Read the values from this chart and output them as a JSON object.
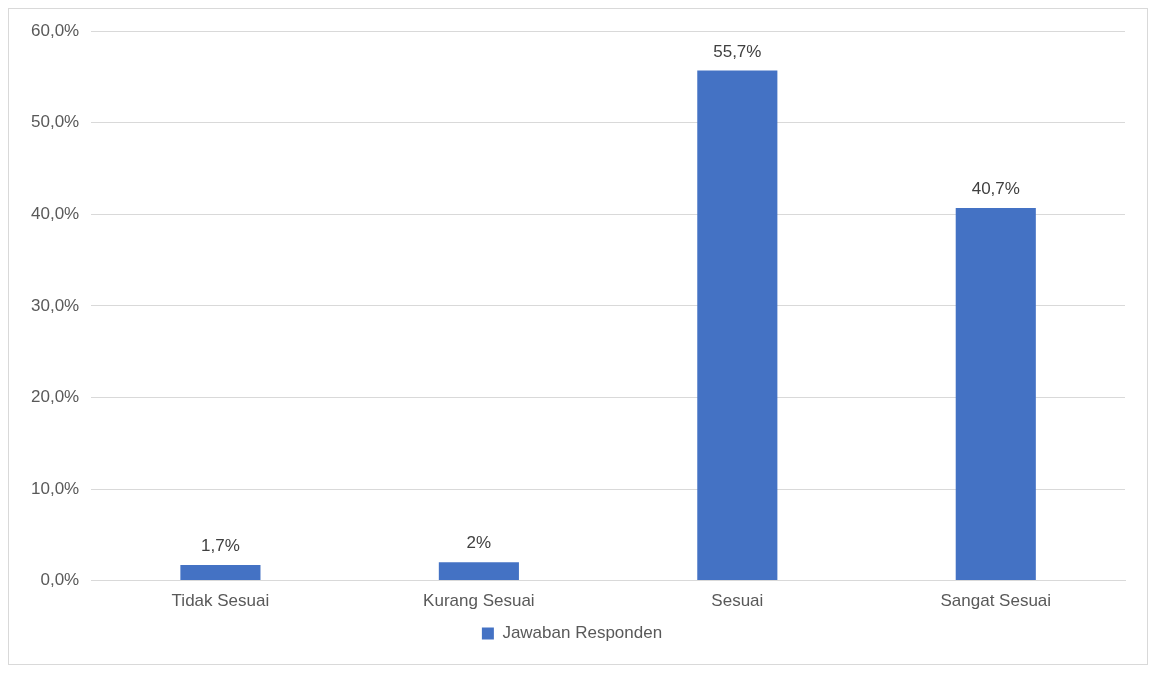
{
  "chart_data": {
    "type": "bar",
    "categories": [
      "Tidak Sesuai",
      "Kurang Sesuai",
      "Sesuai",
      "Sangat Sesuai"
    ],
    "series": [
      {
        "name": "Jawaban Responden",
        "color": "#4472c4",
        "values": [
          1.7,
          2,
          55.7,
          40.7
        ],
        "value_labels": [
          "1,7%",
          "2%",
          "55,7%",
          "40,7%"
        ]
      }
    ],
    "ylim": [
      0,
      60
    ],
    "yticks": [
      {
        "value": 0,
        "label": "0,0%"
      },
      {
        "value": 10,
        "label": "10,0%"
      },
      {
        "value": 20,
        "label": "20,0%"
      },
      {
        "value": 30,
        "label": "30,0%"
      },
      {
        "value": 40,
        "label": "40,0%"
      },
      {
        "value": 50,
        "label": "50,0%"
      },
      {
        "value": 60,
        "label": "60,0%"
      }
    ],
    "grid": "y",
    "legend": "bottom"
  }
}
